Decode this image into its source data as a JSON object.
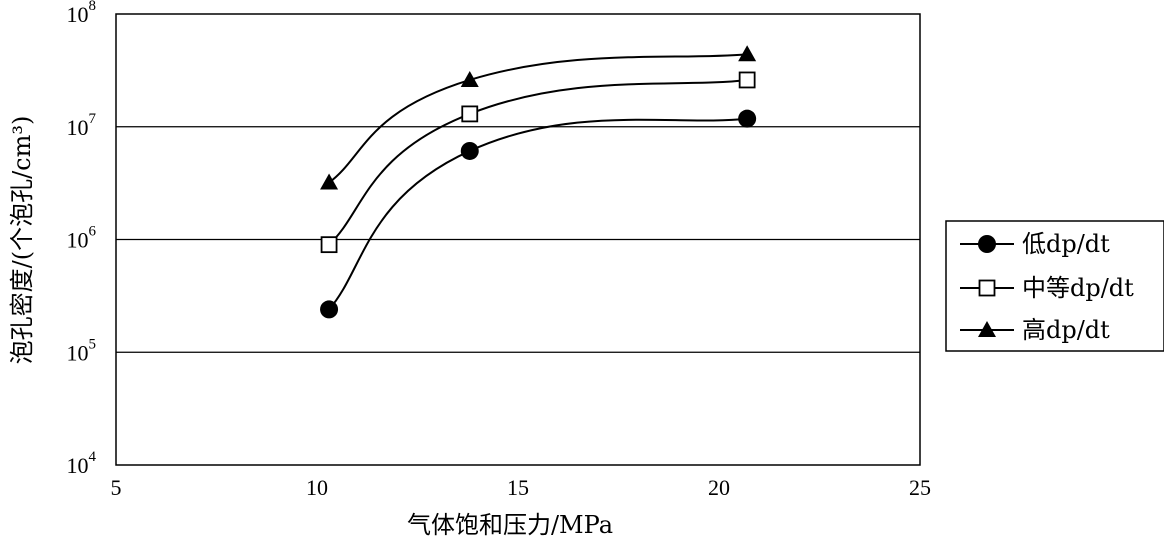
{
  "chart_data": {
    "type": "line",
    "xlabel": "气体饱和压力/MPa",
    "ylabel": "泡孔密度/(个泡孔/cm³)",
    "xlim": [
      5,
      25
    ],
    "ylim_log10": [
      4,
      8
    ],
    "y_scale": "log",
    "x_ticks": [
      5,
      10,
      15,
      20,
      25
    ],
    "y_ticks": [
      {
        "base": "10",
        "exp": "4",
        "value": 10000
      },
      {
        "base": "10",
        "exp": "5",
        "value": 100000
      },
      {
        "base": "10",
        "exp": "6",
        "value": 1000000
      },
      {
        "base": "10",
        "exp": "7",
        "value": 10000000
      },
      {
        "base": "10",
        "exp": "8",
        "value": 100000000
      }
    ],
    "grid": "horizontal",
    "legend_position": "right",
    "series": [
      {
        "name": "低dp/dt",
        "marker": "filled-circle",
        "x": [
          10.3,
          13.8,
          20.7
        ],
        "y": [
          240000,
          6100000,
          11800000
        ]
      },
      {
        "name": "中等dp/dt",
        "marker": "open-square",
        "x": [
          10.3,
          13.8,
          20.7
        ],
        "y": [
          900000,
          13000000,
          26000000
        ]
      },
      {
        "name": "高dp/dt",
        "marker": "filled-triangle",
        "x": [
          10.3,
          13.8,
          20.7
        ],
        "y": [
          3200000,
          26000000,
          44000000
        ]
      }
    ]
  }
}
